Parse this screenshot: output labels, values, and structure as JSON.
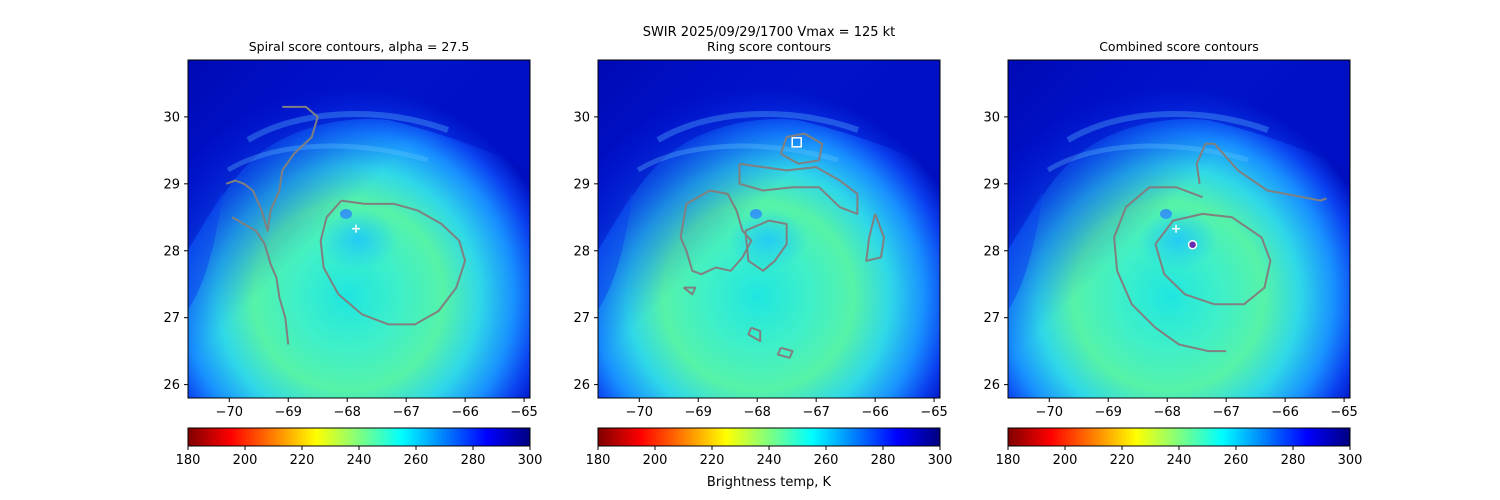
{
  "suptitle": "SWIR  2025/09/29/1700    Vmax = 125 kt",
  "colorbar_label": "Brightness temp, K",
  "colormap": [
    "#7f0000",
    "#ff0000",
    "#ff7f00",
    "#ffff00",
    "#7fff7f",
    "#00ffff",
    "#007fff",
    "#0000ff",
    "#00007f"
  ],
  "chart_data": [
    {
      "type": "heatmap",
      "title": "Spiral score contours, alpha = 27.5",
      "xlim": [
        -70.7,
        -64.9
      ],
      "ylim": [
        25.8,
        30.85
      ],
      "xticks": [
        -70,
        -69,
        -68,
        -67,
        -66,
        -65
      ],
      "xtick_labels": [
        "−70",
        "−69",
        "−68",
        "−67",
        "−66",
        "−65"
      ],
      "yticks": [
        26,
        27,
        28,
        29,
        30
      ],
      "ytick_labels": [
        "26",
        "27",
        "28",
        "29",
        "30"
      ],
      "colorbar": {
        "range": [
          180,
          300
        ],
        "ticks": [
          "180",
          "200",
          "220",
          "240",
          "260",
          "280",
          "300"
        ]
      },
      "contours": [
        [
          [
            -69.1,
            30.15
          ],
          [
            -68.7,
            30.15
          ],
          [
            -68.5,
            30.0
          ],
          [
            -68.6,
            29.7
          ],
          [
            -68.9,
            29.45
          ],
          [
            -69.1,
            29.2
          ],
          [
            -69.15,
            28.9
          ],
          [
            -69.3,
            28.6
          ],
          [
            -69.35,
            28.3
          ],
          [
            -69.45,
            28.6
          ],
          [
            -69.6,
            28.9
          ],
          [
            -69.75,
            29.0
          ],
          [
            -69.9,
            29.05
          ],
          [
            -70.05,
            29.0
          ]
        ],
        [
          [
            -69.95,
            28.5
          ],
          [
            -69.75,
            28.4
          ],
          [
            -69.55,
            28.3
          ],
          [
            -69.4,
            28.1
          ],
          [
            -69.3,
            27.8
          ],
          [
            -69.2,
            27.6
          ],
          [
            -69.15,
            27.3
          ],
          [
            -69.05,
            27.0
          ],
          [
            -69.0,
            26.6
          ]
        ],
        [
          [
            -68.1,
            28.75
          ],
          [
            -67.7,
            28.7
          ],
          [
            -67.2,
            28.7
          ],
          [
            -66.8,
            28.6
          ],
          [
            -66.4,
            28.4
          ],
          [
            -66.1,
            28.15
          ],
          [
            -66.0,
            27.85
          ],
          [
            -66.15,
            27.45
          ],
          [
            -66.45,
            27.1
          ],
          [
            -66.85,
            26.9
          ],
          [
            -67.3,
            26.9
          ],
          [
            -67.75,
            27.05
          ],
          [
            -68.15,
            27.35
          ],
          [
            -68.4,
            27.75
          ],
          [
            -68.45,
            28.15
          ],
          [
            -68.35,
            28.5
          ],
          [
            -68.1,
            28.75
          ]
        ]
      ],
      "markers": [
        {
          "symbol": "+",
          "x": -67.85,
          "y": 28.33
        }
      ]
    },
    {
      "type": "heatmap",
      "title": "Ring score contours",
      "xlim": [
        -70.7,
        -64.9
      ],
      "ylim": [
        25.8,
        30.85
      ],
      "xticks": [
        -70,
        -69,
        -68,
        -67,
        -66,
        -65
      ],
      "xtick_labels": [
        "−70",
        "−69",
        "−68",
        "−67",
        "−66",
        "−65"
      ],
      "yticks": [
        26,
        27,
        28,
        29,
        30
      ],
      "ytick_labels": [
        "26",
        "27",
        "28",
        "29",
        "30"
      ],
      "colorbar": {
        "range": [
          180,
          300
        ],
        "ticks": [
          "180",
          "200",
          "220",
          "240",
          "260",
          "280",
          "300"
        ]
      },
      "contours": [
        [
          [
            -67.6,
            29.45
          ],
          [
            -67.5,
            29.7
          ],
          [
            -67.2,
            29.75
          ],
          [
            -66.9,
            29.6
          ],
          [
            -66.95,
            29.35
          ],
          [
            -67.3,
            29.3
          ],
          [
            -67.6,
            29.45
          ]
        ],
        [
          [
            -68.3,
            29.3
          ],
          [
            -67.9,
            29.25
          ],
          [
            -67.5,
            29.2
          ],
          [
            -67.0,
            29.25
          ],
          [
            -66.6,
            29.05
          ],
          [
            -66.3,
            28.85
          ],
          [
            -66.3,
            28.55
          ],
          [
            -66.6,
            28.65
          ],
          [
            -66.95,
            28.95
          ],
          [
            -67.4,
            28.95
          ],
          [
            -67.9,
            28.9
          ],
          [
            -68.3,
            29.0
          ],
          [
            -68.3,
            29.3
          ]
        ],
        [
          [
            -69.2,
            28.7
          ],
          [
            -68.8,
            28.9
          ],
          [
            -68.5,
            28.85
          ],
          [
            -68.35,
            28.6
          ],
          [
            -68.25,
            28.3
          ],
          [
            -68.1,
            28.15
          ],
          [
            -68.25,
            27.9
          ],
          [
            -68.45,
            27.7
          ],
          [
            -68.7,
            27.75
          ],
          [
            -68.95,
            27.65
          ],
          [
            -69.1,
            27.7
          ],
          [
            -69.2,
            28.0
          ],
          [
            -69.3,
            28.2
          ],
          [
            -69.2,
            28.7
          ]
        ],
        [
          [
            -68.2,
            28.3
          ],
          [
            -67.8,
            28.45
          ],
          [
            -67.5,
            28.4
          ],
          [
            -67.5,
            28.1
          ],
          [
            -67.7,
            27.85
          ],
          [
            -67.9,
            27.7
          ],
          [
            -68.15,
            27.85
          ],
          [
            -68.2,
            28.3
          ]
        ],
        [
          [
            -66.0,
            28.55
          ],
          [
            -65.85,
            28.2
          ],
          [
            -65.9,
            27.9
          ],
          [
            -66.15,
            27.85
          ],
          [
            -66.1,
            28.2
          ],
          [
            -66.0,
            28.55
          ]
        ],
        [
          [
            -68.1,
            26.85
          ],
          [
            -67.95,
            26.8
          ],
          [
            -67.95,
            26.65
          ],
          [
            -68.15,
            26.75
          ],
          [
            -68.1,
            26.85
          ]
        ],
        [
          [
            -67.6,
            26.55
          ],
          [
            -67.4,
            26.5
          ],
          [
            -67.45,
            26.4
          ],
          [
            -67.65,
            26.45
          ],
          [
            -67.6,
            26.55
          ]
        ],
        [
          [
            -69.25,
            27.45
          ],
          [
            -69.05,
            27.45
          ],
          [
            -69.1,
            27.35
          ],
          [
            -69.25,
            27.45
          ]
        ]
      ],
      "markers": [
        {
          "symbol": "square",
          "x": -67.33,
          "y": 29.62
        }
      ]
    },
    {
      "type": "heatmap",
      "title": "Combined score contours",
      "xlim": [
        -70.7,
        -64.9
      ],
      "ylim": [
        25.8,
        30.85
      ],
      "xticks": [
        -70,
        -69,
        -68,
        -67,
        -66,
        -65
      ],
      "xtick_labels": [
        "−70",
        "−69",
        "−68",
        "−67",
        "−66",
        "−65"
      ],
      "yticks": [
        26,
        27,
        28,
        29,
        30
      ],
      "ytick_labels": [
        "26",
        "27",
        "28",
        "29",
        "30"
      ],
      "colorbar": {
        "range": [
          180,
          300
        ],
        "ticks": [
          "180",
          "200",
          "220",
          "240",
          "260",
          "280",
          "300"
        ]
      },
      "contours": [
        [
          [
            -67.45,
            29.0
          ],
          [
            -67.5,
            29.3
          ],
          [
            -67.35,
            29.6
          ],
          [
            -67.2,
            29.6
          ],
          [
            -67.0,
            29.4
          ],
          [
            -66.8,
            29.2
          ],
          [
            -66.3,
            28.9
          ],
          [
            -65.7,
            28.8
          ],
          [
            -65.4,
            28.75
          ],
          [
            -65.3,
            28.78
          ]
        ],
        [
          [
            -67.4,
            28.8
          ],
          [
            -67.85,
            28.95
          ],
          [
            -68.3,
            28.95
          ],
          [
            -68.7,
            28.65
          ],
          [
            -68.9,
            28.2
          ],
          [
            -68.85,
            27.7
          ],
          [
            -68.6,
            27.2
          ],
          [
            -68.2,
            26.85
          ],
          [
            -67.8,
            26.6
          ],
          [
            -67.3,
            26.5
          ],
          [
            -67.0,
            26.5
          ]
        ],
        [
          [
            -68.2,
            28.1
          ],
          [
            -67.9,
            28.45
          ],
          [
            -67.4,
            28.55
          ],
          [
            -66.9,
            28.5
          ],
          [
            -66.4,
            28.2
          ],
          [
            -66.25,
            27.85
          ],
          [
            -66.35,
            27.45
          ],
          [
            -66.7,
            27.2
          ],
          [
            -67.2,
            27.2
          ],
          [
            -67.7,
            27.35
          ],
          [
            -68.05,
            27.65
          ],
          [
            -68.2,
            28.1
          ]
        ]
      ],
      "markers": [
        {
          "symbol": "+",
          "x": -67.85,
          "y": 28.33
        },
        {
          "symbol": "circle",
          "x": -67.57,
          "y": 28.09
        }
      ]
    }
  ]
}
